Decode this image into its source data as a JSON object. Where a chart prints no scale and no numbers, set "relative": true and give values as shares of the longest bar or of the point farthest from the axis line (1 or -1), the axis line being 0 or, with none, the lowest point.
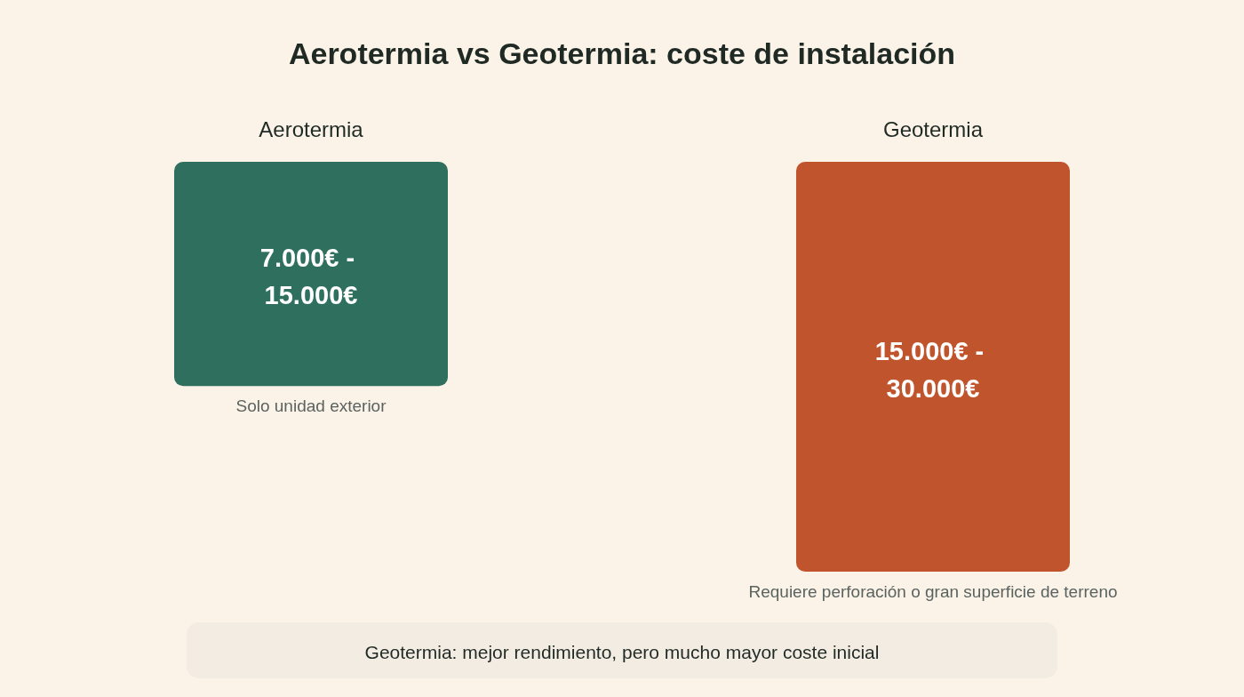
{
  "chart_data": {
    "type": "bar",
    "title": "Aerotermia vs Geotermia: coste de instalación",
    "categories": [
      "Aerotermia",
      "Geotermia"
    ],
    "values": [
      -0.547,
      -1
    ],
    "colors": [
      "#2e6f5e",
      "#c0552d"
    ],
    "relative": true,
    "annotations": [
      "7.000€ - 15.000€",
      "15.000€ - 30.000€",
      {
        "text": "Solo unidad exterior",
        "x": "Aerotermia",
        "y": -0.547
      },
      {
        "text": "Requiere perforación o gran superficie de terreno",
        "x": "Geotermia",
        "y": -1
      },
      "Geotermia: mejor rendimiento, pero mucho mayor coste inicial"
    ]
  }
}
